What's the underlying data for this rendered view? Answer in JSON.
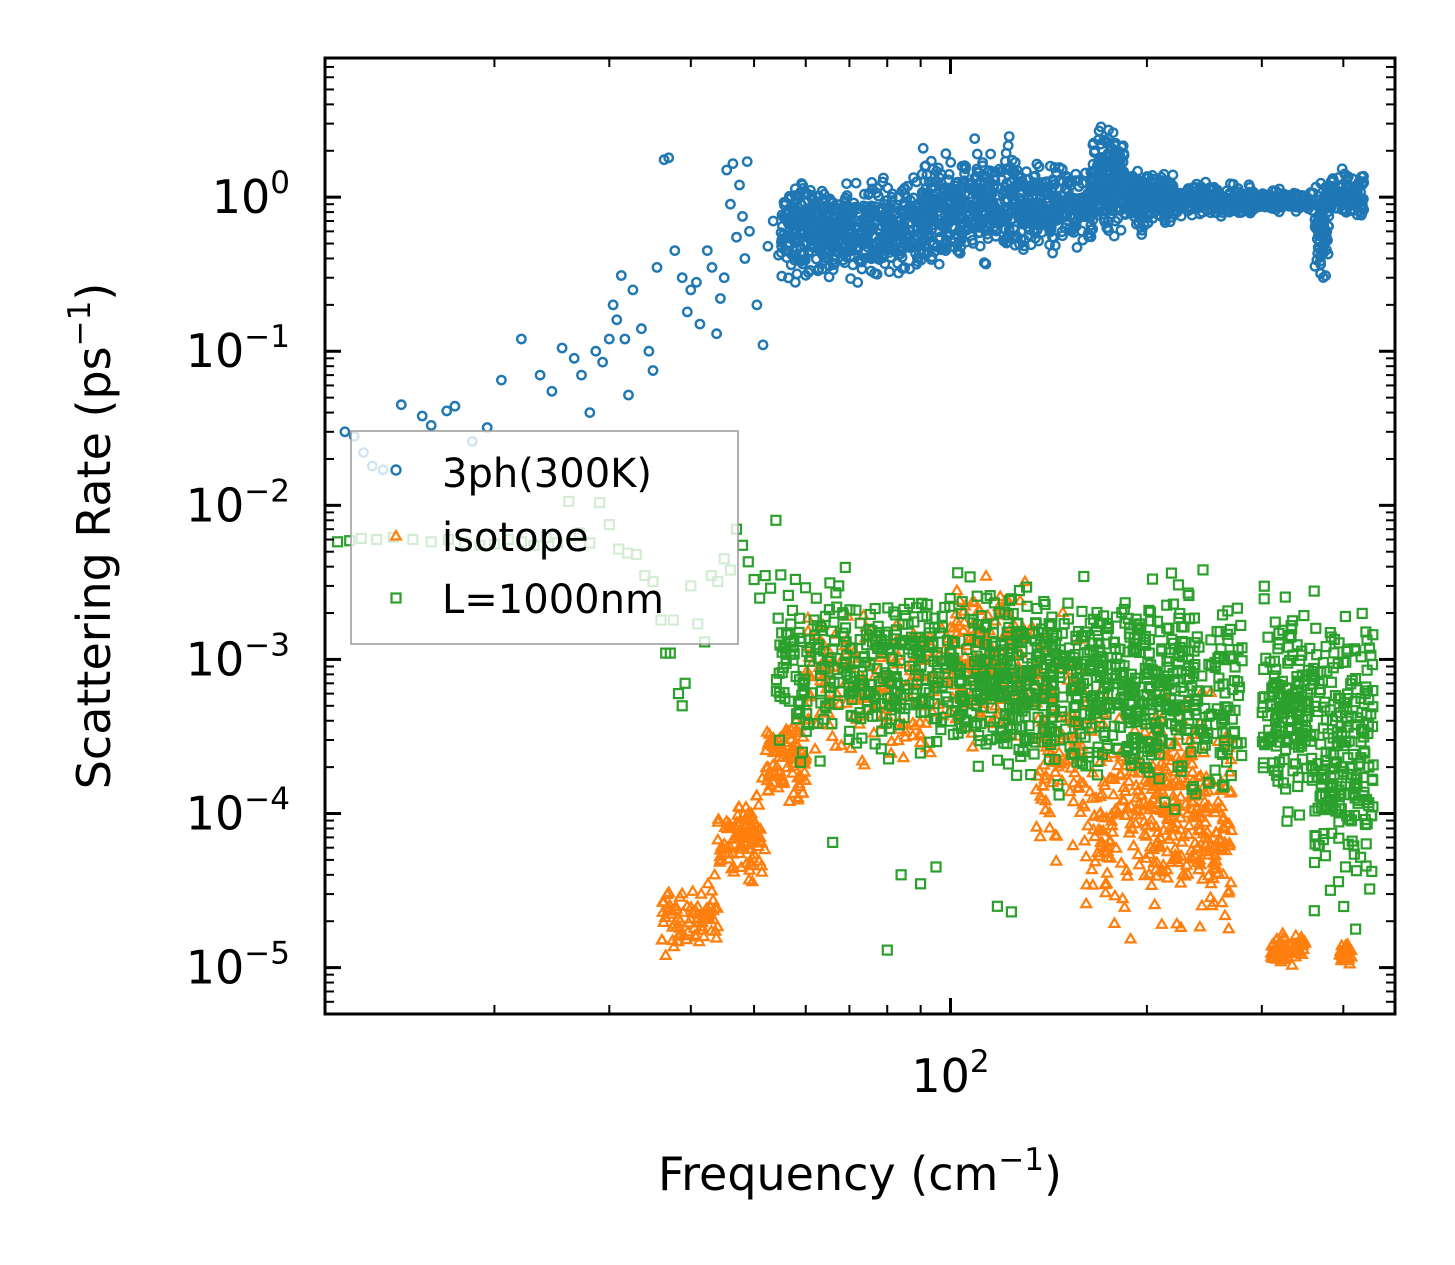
{
  "chart_data": {
    "type": "scatter",
    "title": "",
    "xlabel": "Frequency (cm",
    "xlabel_sup": "−1",
    "xlabel_end": ")",
    "ylabel": "Scattering Rate (ps",
    "ylabel_sup": "−1",
    "ylabel_end": ")",
    "xscale": "log",
    "yscale": "log",
    "xlim": [
      11,
      480
    ],
    "ylim": [
      5e-06,
      8
    ],
    "x_ticks": [
      {
        "value": 100,
        "base": "10",
        "exp": "2"
      }
    ],
    "y_ticks": [
      {
        "value": 1,
        "base": "10",
        "exp": "0"
      },
      {
        "value": 0.1,
        "base": "10",
        "exp": "−1"
      },
      {
        "value": 0.01,
        "base": "10",
        "exp": "−2"
      },
      {
        "value": 0.001,
        "base": "10",
        "exp": "−3"
      },
      {
        "value": 0.0001,
        "base": "10",
        "exp": "−4"
      },
      {
        "value": 1e-05,
        "base": "10",
        "exp": "−5"
      }
    ],
    "legend_position": "center-left",
    "series": [
      {
        "name": "3ph(300K)",
        "color": "#1f77b4",
        "marker": "circle",
        "points": [
          [
            11.8,
            0.03
          ],
          [
            12.2,
            0.028
          ],
          [
            12.6,
            0.022
          ],
          [
            13.0,
            0.018
          ],
          [
            13.5,
            0.017
          ],
          [
            14.4,
            0.045
          ],
          [
            15.5,
            0.038
          ],
          [
            16.0,
            0.033
          ],
          [
            16.9,
            0.041
          ],
          [
            17.4,
            0.044
          ],
          [
            18.5,
            0.026
          ],
          [
            19.5,
            0.032
          ],
          [
            20.5,
            0.065
          ],
          [
            22.0,
            0.12
          ],
          [
            23.5,
            0.07
          ],
          [
            24.5,
            0.055
          ],
          [
            25.4,
            0.105
          ],
          [
            26.5,
            0.09
          ],
          [
            27.2,
            0.07
          ],
          [
            28.0,
            0.04
          ],
          [
            28.6,
            0.1
          ],
          [
            29.3,
            0.085
          ],
          [
            30.0,
            0.12
          ],
          [
            30.4,
            0.2
          ],
          [
            30.8,
            0.16
          ],
          [
            31.3,
            0.31
          ],
          [
            31.7,
            0.12
          ],
          [
            32.1,
            0.052
          ],
          [
            32.6,
            0.25
          ],
          [
            33.6,
            0.14
          ],
          [
            34.5,
            0.1
          ],
          [
            35.0,
            0.075
          ],
          [
            35.5,
            0.35
          ],
          [
            36.4,
            1.75
          ],
          [
            37.0,
            1.8
          ],
          [
            37.8,
            0.45
          ],
          [
            38.8,
            0.3
          ],
          [
            39.5,
            0.18
          ],
          [
            40.0,
            0.25
          ],
          [
            40.8,
            0.28
          ],
          [
            41.3,
            0.15
          ],
          [
            42.4,
            0.45
          ],
          [
            43.1,
            0.35
          ],
          [
            43.8,
            0.13
          ],
          [
            44.4,
            0.22
          ],
          [
            45.0,
            0.3
          ],
          [
            45.4,
            1.5
          ],
          [
            46.0,
            0.9
          ],
          [
            46.4,
            1.65
          ],
          [
            47.0,
            0.55
          ],
          [
            47.5,
            1.2
          ],
          [
            48.0,
            0.75
          ],
          [
            48.4,
            0.4
          ],
          [
            48.8,
            1.7
          ],
          [
            49.2,
            0.6
          ],
          [
            50.5,
            0.2
          ],
          [
            51.6,
            0.11
          ],
          [
            52.5,
            0.48
          ],
          [
            53.5,
            0.7
          ],
          [
            54.5,
            0.42
          ]
        ],
        "bands": [
          {
            "x_from": 55,
            "x_to": 63,
            "y_low": 0.25,
            "y_high": 1.6,
            "density": 170
          },
          {
            "x_from": 63,
            "x_to": 75,
            "y_low": 0.25,
            "y_high": 1.4,
            "density": 210
          },
          {
            "x_from": 75,
            "x_to": 90,
            "y_low": 0.25,
            "y_high": 1.6,
            "density": 210
          },
          {
            "x_from": 90,
            "x_to": 105,
            "y_low": 0.3,
            "y_high": 2.3,
            "density": 210
          },
          {
            "x_from": 105,
            "x_to": 130,
            "y_low": 0.3,
            "y_high": 2.8,
            "density": 240
          },
          {
            "x_from": 130,
            "x_to": 165,
            "y_low": 0.4,
            "y_high": 1.9,
            "density": 240
          },
          {
            "x_from": 165,
            "x_to": 185,
            "y_low": 0.45,
            "y_high": 3.5,
            "density": 190
          },
          {
            "x_from": 185,
            "x_to": 220,
            "y_low": 0.55,
            "y_high": 1.8,
            "density": 220
          },
          {
            "x_from": 220,
            "x_to": 290,
            "y_low": 0.7,
            "y_high": 1.3,
            "density": 190
          },
          {
            "x_from": 290,
            "x_to": 360,
            "y_low": 0.75,
            "y_high": 1.2,
            "density": 150
          },
          {
            "x_from": 360,
            "x_to": 380,
            "y_low": 0.25,
            "y_high": 1.7,
            "density": 80
          },
          {
            "x_from": 380,
            "x_to": 430,
            "y_low": 0.65,
            "y_high": 1.6,
            "density": 120
          }
        ]
      },
      {
        "name": "isotope",
        "color": "#ff7f0e",
        "marker": "triangle",
        "points": [
          [
            36.6,
            1.2e-05
          ],
          [
            37.5,
            1.5e-05
          ],
          [
            38.5,
            2e-05
          ],
          [
            39.5,
            2.5e-05
          ],
          [
            40.5,
            1.8e-05
          ],
          [
            41.5,
            3e-05
          ],
          [
            42.5,
            3.5e-05
          ],
          [
            43.5,
            4e-05
          ],
          [
            44.5,
            5e-05
          ],
          [
            45.5,
            6e-05
          ],
          [
            46.5,
            4.5e-05
          ],
          [
            47.5,
            7e-05
          ],
          [
            48.5,
            9e-05
          ],
          [
            49.5,
            0.0001
          ],
          [
            50.5,
            0.00013
          ],
          [
            51.5,
            0.00017
          ],
          [
            52.5,
            0.0002
          ],
          [
            53.5,
            0.00025
          ],
          [
            54.5,
            0.0003
          ],
          [
            56,
            0.00035
          ],
          [
            58,
            0.0004
          ],
          [
            60,
            0.0005
          ]
        ],
        "bands": [
          {
            "x_from": 36,
            "x_to": 44,
            "y_low": 1.1e-05,
            "y_high": 4e-05,
            "density": 70
          },
          {
            "x_from": 44,
            "x_to": 52,
            "y_low": 3e-05,
            "y_high": 0.00015,
            "density": 90
          },
          {
            "x_from": 52,
            "x_to": 60,
            "y_low": 0.0001,
            "y_high": 0.0005,
            "density": 90
          },
          {
            "x_from": 60,
            "x_to": 100,
            "y_low": 0.00015,
            "y_high": 0.003,
            "density": 170
          },
          {
            "x_from": 100,
            "x_to": 135,
            "y_low": 0.0002,
            "y_high": 0.005,
            "density": 170
          },
          {
            "x_from": 135,
            "x_to": 160,
            "y_low": 3e-05,
            "y_high": 0.003,
            "density": 110
          },
          {
            "x_from": 160,
            "x_to": 205,
            "y_low": 1.2e-05,
            "y_high": 0.001,
            "density": 150
          },
          {
            "x_from": 205,
            "x_to": 270,
            "y_low": 1e-05,
            "y_high": 0.001,
            "density": 260
          },
          {
            "x_from": 310,
            "x_to": 350,
            "y_low": 1e-05,
            "y_high": 1.8e-05,
            "density": 70
          },
          {
            "x_from": 395,
            "x_to": 412,
            "y_low": 1e-05,
            "y_high": 1.5e-05,
            "density": 30
          }
        ]
      },
      {
        "name": "L=1000nm",
        "color": "#2ca02c",
        "marker": "square",
        "points": [
          [
            11.5,
            0.0058
          ],
          [
            12.0,
            0.0059
          ],
          [
            12.5,
            0.0061
          ],
          [
            13.2,
            0.006
          ],
          [
            14.0,
            0.0062
          ],
          [
            15.0,
            0.006
          ],
          [
            16.0,
            0.0058
          ],
          [
            17.0,
            0.006
          ],
          [
            18.0,
            0.0057
          ],
          [
            19.0,
            0.0055
          ],
          [
            20.0,
            0.0056
          ],
          [
            21.0,
            0.006
          ],
          [
            22.0,
            0.0058
          ],
          [
            23.0,
            0.0055
          ],
          [
            24.0,
            0.0062
          ],
          [
            25.0,
            0.0057
          ],
          [
            26.0,
            0.0106
          ],
          [
            27.0,
            0.0066
          ],
          [
            28.0,
            0.0057
          ],
          [
            29.0,
            0.0104
          ],
          [
            30.0,
            0.0075
          ],
          [
            31.0,
            0.0052
          ],
          [
            32.0,
            0.0049
          ],
          [
            33.0,
            0.0048
          ],
          [
            34.0,
            0.0035
          ],
          [
            35.0,
            0.0032
          ],
          [
            36.0,
            0.0018
          ],
          [
            36.6,
            0.0011
          ],
          [
            37.2,
            0.0011
          ],
          [
            37.6,
            0.0018
          ],
          [
            38.3,
            0.0006
          ],
          [
            38.8,
            0.0005
          ],
          [
            39.2,
            0.0007
          ],
          [
            40.0,
            0.003
          ],
          [
            41.0,
            0.0017
          ],
          [
            42.0,
            0.0013
          ],
          [
            43.0,
            0.0035
          ],
          [
            44.0,
            0.0032
          ],
          [
            45.0,
            0.0045
          ],
          [
            46.0,
            0.0038
          ],
          [
            47.0,
            0.007
          ],
          [
            48.0,
            0.0055
          ],
          [
            49.0,
            0.0043
          ],
          [
            50.0,
            0.0033
          ],
          [
            51.0,
            0.0025
          ],
          [
            52.0,
            0.0035
          ],
          [
            53.0,
            0.0029
          ],
          [
            54.0,
            0.008
          ],
          [
            66,
            6.5e-05
          ],
          [
            80,
            1.3e-05
          ],
          [
            84,
            4e-05
          ],
          [
            90,
            3.5e-05
          ],
          [
            95,
            4.5e-05
          ],
          [
            118,
            2.5e-05
          ],
          [
            124,
            2.3e-05
          ]
        ],
        "bands": [
          {
            "x_from": 54,
            "x_to": 110,
            "y_low": 0.00015,
            "y_high": 0.005,
            "density": 380
          },
          {
            "x_from": 110,
            "x_to": 170,
            "y_low": 0.0001,
            "y_high": 0.005,
            "density": 380
          },
          {
            "x_from": 170,
            "x_to": 280,
            "y_low": 8e-05,
            "y_high": 0.005,
            "density": 380
          },
          {
            "x_from": 300,
            "x_to": 360,
            "y_low": 6e-05,
            "y_high": 0.004,
            "density": 170
          },
          {
            "x_from": 360,
            "x_to": 445,
            "y_low": 1.5e-05,
            "y_high": 0.004,
            "density": 220
          }
        ]
      }
    ]
  }
}
